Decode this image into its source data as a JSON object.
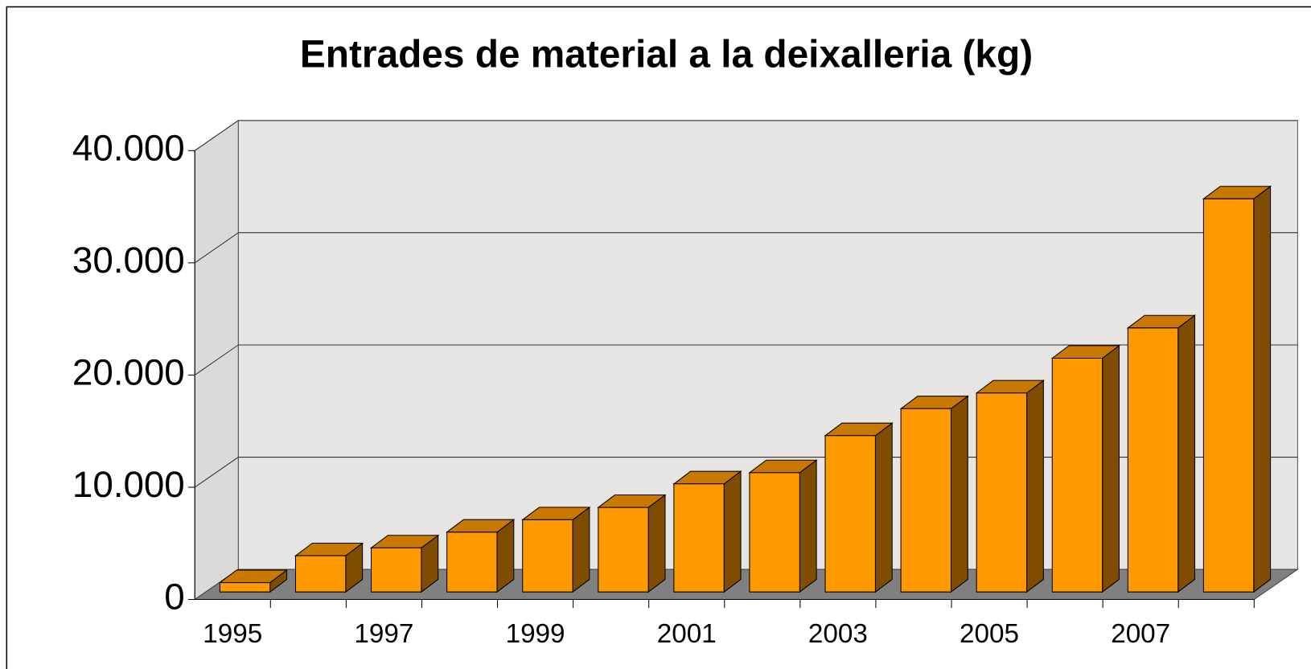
{
  "chart_data": {
    "type": "bar3d",
    "title": "Entrades de material a la deixalleria (kg)",
    "categories": [
      "1995",
      null,
      "1997",
      null,
      "1999",
      null,
      "2001",
      null,
      "2003",
      null,
      "2005",
      null,
      "2007",
      null
    ],
    "values": [
      1500,
      3900,
      4600,
      6000,
      7100,
      8200,
      10300,
      11300,
      14600,
      17000,
      18400,
      21500,
      24200,
      35700
    ],
    "color": "#ff9900",
    "ylim": [
      0,
      40000
    ],
    "yticks": [
      0,
      {
        "value": 10000,
        "label": "10.000"
      },
      {
        "value": 20000,
        "label": "20.000"
      },
      {
        "value": 30000,
        "label": "30.000"
      },
      {
        "value": 40000,
        "label": "40.000"
      }
    ],
    "grid": true
  }
}
